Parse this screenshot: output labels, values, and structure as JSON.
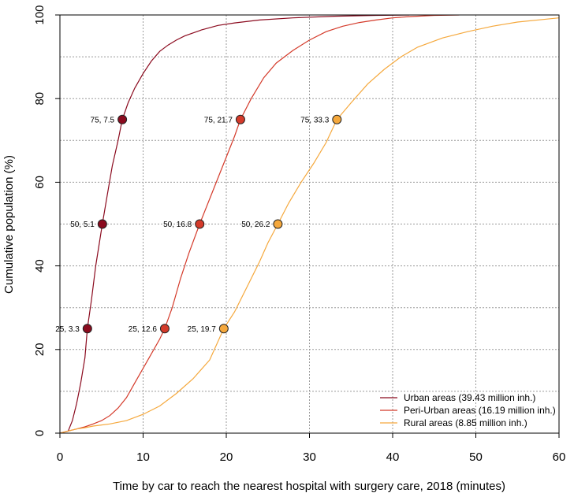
{
  "chart_data": {
    "type": "line",
    "xlabel": "Time by car to reach the nearest hospital with surgery care, 2018 (minutes)",
    "ylabel": "Cumulative population (%)",
    "xlim": [
      0,
      60
    ],
    "ylim": [
      0,
      100
    ],
    "x_ticks": [
      "0",
      "10",
      "20",
      "30",
      "40",
      "50",
      "60"
    ],
    "y_ticks": [
      "0",
      "20",
      "40",
      "60",
      "80",
      "100"
    ],
    "grid": true,
    "legend_position": "bottom-right",
    "series": [
      {
        "name": "Urban areas (39.43 million inh.)",
        "color": "#8b0a1e",
        "points": [
          [
            0,
            0
          ],
          [
            1,
            0.5
          ],
          [
            1.5,
            3
          ],
          [
            2,
            7
          ],
          [
            2.5,
            12
          ],
          [
            3,
            18
          ],
          [
            3.3,
            25
          ],
          [
            3.8,
            32
          ],
          [
            4.3,
            40
          ],
          [
            5.1,
            50
          ],
          [
            5.7,
            57
          ],
          [
            6.3,
            64
          ],
          [
            7,
            70
          ],
          [
            7.5,
            75
          ],
          [
            8.2,
            79
          ],
          [
            9,
            82.5
          ],
          [
            10,
            86
          ],
          [
            11,
            89
          ],
          [
            12,
            91.3
          ],
          [
            13,
            92.8
          ],
          [
            14,
            94
          ],
          [
            15,
            95
          ],
          [
            17,
            96.4
          ],
          [
            19,
            97.5
          ],
          [
            21,
            98.1
          ],
          [
            24,
            98.8
          ],
          [
            28,
            99.3
          ],
          [
            33,
            99.7
          ],
          [
            38,
            99.9
          ],
          [
            42,
            100
          ]
        ],
        "markers": [
          {
            "x": 3.3,
            "y": 25,
            "label": "25, 3.3"
          },
          {
            "x": 5.1,
            "y": 50,
            "label": "50, 5.1"
          },
          {
            "x": 7.5,
            "y": 75,
            "label": "75, 7.5"
          }
        ]
      },
      {
        "name": "Peri-Urban areas (16.19 million inh.)",
        "color": "#d43a2a",
        "points": [
          [
            0,
            0
          ],
          [
            1,
            0.5
          ],
          [
            2,
            1
          ],
          [
            3,
            1.5
          ],
          [
            4,
            2.2
          ],
          [
            5,
            3
          ],
          [
            6,
            4.2
          ],
          [
            7,
            6
          ],
          [
            8,
            8.5
          ],
          [
            9,
            12
          ],
          [
            10,
            15.5
          ],
          [
            11,
            19
          ],
          [
            12,
            22.5
          ],
          [
            12.6,
            25
          ],
          [
            13.5,
            30
          ],
          [
            14.5,
            37
          ],
          [
            15.5,
            43
          ],
          [
            16.8,
            50
          ],
          [
            18,
            56
          ],
          [
            19,
            61
          ],
          [
            20,
            66
          ],
          [
            21,
            71
          ],
          [
            21.7,
            75
          ],
          [
            23,
            80
          ],
          [
            24.5,
            85
          ],
          [
            26,
            88.5
          ],
          [
            28,
            91.5
          ],
          [
            30,
            94
          ],
          [
            32,
            96
          ],
          [
            34,
            97.3
          ],
          [
            36,
            98.2
          ],
          [
            38,
            98.8
          ],
          [
            40,
            99.3
          ],
          [
            42,
            99.6
          ],
          [
            45,
            99.9
          ],
          [
            48,
            100
          ]
        ],
        "markers": [
          {
            "x": 12.6,
            "y": 25,
            "label": "25, 12.6"
          },
          {
            "x": 16.8,
            "y": 50,
            "label": "50, 16.8"
          },
          {
            "x": 21.7,
            "y": 75,
            "label": "75, 21.7"
          }
        ]
      },
      {
        "name": "Rural areas (8.85 million inh.)",
        "color": "#f5a83c",
        "points": [
          [
            0,
            0
          ],
          [
            1,
            0.5
          ],
          [
            2,
            1
          ],
          [
            3,
            1.3
          ],
          [
            4,
            1.7
          ],
          [
            6,
            2.2
          ],
          [
            8,
            3
          ],
          [
            10,
            4.5
          ],
          [
            12,
            6.5
          ],
          [
            14,
            9.5
          ],
          [
            16,
            13
          ],
          [
            18,
            17.5
          ],
          [
            19.7,
            25
          ],
          [
            21,
            29
          ],
          [
            22.5,
            35
          ],
          [
            24,
            41
          ],
          [
            25,
            45.5
          ],
          [
            26.2,
            50
          ],
          [
            27.5,
            55
          ],
          [
            29,
            60
          ],
          [
            30.5,
            64.5
          ],
          [
            32,
            69.5
          ],
          [
            33.3,
            75
          ],
          [
            35,
            79
          ],
          [
            37,
            83.5
          ],
          [
            39,
            87
          ],
          [
            41,
            90
          ],
          [
            43,
            92.3
          ],
          [
            46,
            94.5
          ],
          [
            49,
            96
          ],
          [
            52,
            97.3
          ],
          [
            55,
            98.3
          ],
          [
            58,
            98.9
          ],
          [
            60,
            99.3
          ]
        ],
        "markers": [
          {
            "x": 19.7,
            "y": 25,
            "label": "25, 19.7"
          },
          {
            "x": 26.2,
            "y": 50,
            "label": "50, 26.2"
          },
          {
            "x": 33.3,
            "y": 75,
            "label": "75, 33.3"
          }
        ]
      }
    ]
  }
}
